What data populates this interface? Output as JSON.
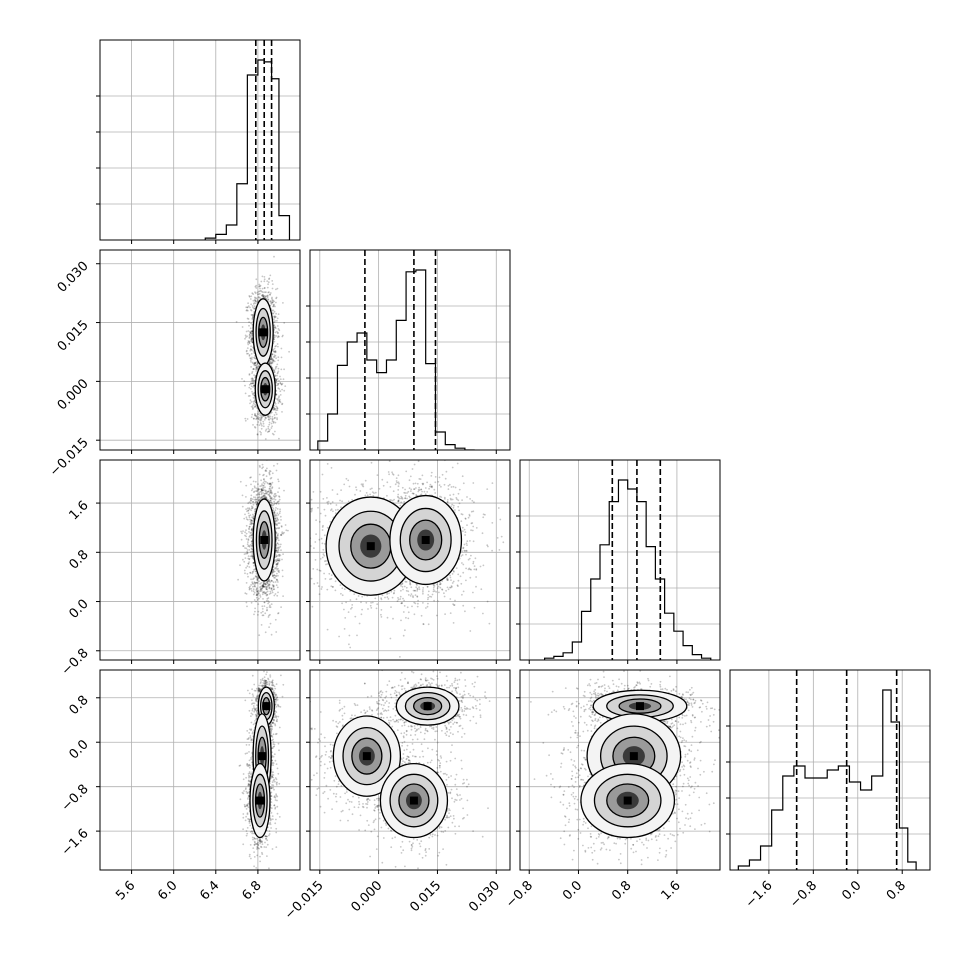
{
  "chart_data": {
    "type": "corner",
    "colors": {
      "ink": "#000000",
      "grid": "#b0b0b0",
      "background": "#ffffff"
    },
    "parameters": [
      {
        "range": [
          5.3,
          7.2
        ],
        "ticks": [
          5.6,
          6.0,
          6.4,
          6.8
        ],
        "tick_labels": [
          "5.6",
          "6.0",
          "6.4",
          "6.8"
        ],
        "quantiles": [
          6.78,
          6.86,
          6.93
        ],
        "hist": {
          "edges": [
            6.3,
            6.4,
            6.5,
            6.6,
            6.7,
            6.8,
            6.86,
            6.93,
            7.0,
            7.1
          ],
          "counts": [
            0.01,
            0.03,
            0.08,
            0.3,
            0.88,
            0.96,
            0.95,
            0.86,
            0.13
          ]
        }
      },
      {
        "range": [
          -0.0175,
          0.0335
        ],
        "ticks": [
          -0.015,
          0.0,
          0.015,
          0.03
        ],
        "tick_labels": [
          "−0.015",
          "0.000",
          "0.015",
          "0.030"
        ],
        "quantiles": [
          -0.0035,
          0.009,
          0.0145
        ],
        "hist": {
          "edges": [
            -0.0155,
            -0.013,
            -0.0105,
            -0.008,
            -0.0055,
            -0.003,
            -0.0005,
            0.002,
            0.0045,
            0.007,
            0.0095,
            0.012,
            0.0145,
            0.017,
            0.0195,
            0.022,
            0.0245
          ],
          "counts": [
            0.05,
            0.2,
            0.47,
            0.6,
            0.65,
            0.5,
            0.43,
            0.5,
            0.72,
            0.99,
            1.0,
            0.48,
            0.1,
            0.03,
            0.01,
            0.0
          ]
        }
      },
      {
        "range": [
          -0.95,
          2.3
        ],
        "ticks": [
          -0.8,
          0.0,
          0.8,
          1.6
        ],
        "tick_labels": [
          "−0.8",
          "0.0",
          "0.8",
          "1.6"
        ],
        "quantiles": [
          0.55,
          0.95,
          1.33
        ],
        "hist": {
          "edges": [
            -0.55,
            -0.4,
            -0.25,
            -0.1,
            0.05,
            0.2,
            0.35,
            0.5,
            0.65,
            0.8,
            0.95,
            1.1,
            1.25,
            1.4,
            1.55,
            1.7,
            1.85,
            2.0,
            2.15
          ],
          "counts": [
            0.01,
            0.02,
            0.04,
            0.1,
            0.27,
            0.45,
            0.64,
            0.88,
            1.0,
            0.95,
            0.88,
            0.63,
            0.45,
            0.26,
            0.16,
            0.08,
            0.03,
            0.01
          ]
        }
      },
      {
        "range": [
          -2.3,
          1.3
        ],
        "ticks": [
          -1.6,
          -0.8,
          0.0,
          0.8
        ],
        "tick_labels": [
          "−1.6",
          "−0.8",
          "0.0",
          "0.8"
        ],
        "quantiles": [
          -1.1,
          -0.2,
          0.7
        ],
        "hist": {
          "edges": [
            -2.15,
            -1.95,
            -1.75,
            -1.55,
            -1.35,
            -1.15,
            -0.95,
            -0.75,
            -0.55,
            -0.35,
            -0.15,
            0.05,
            0.25,
            0.45,
            0.6,
            0.75,
            0.9,
            1.05
          ],
          "counts": [
            0.02,
            0.05,
            0.12,
            0.3,
            0.47,
            0.52,
            0.46,
            0.46,
            0.5,
            0.52,
            0.44,
            0.4,
            0.47,
            0.9,
            0.74,
            0.21,
            0.04
          ]
        }
      }
    ],
    "density_blobs": {
      "1_0": [
        {
          "x": 6.85,
          "y": 0.0125,
          "sx": 0.05,
          "sy": 0.0045,
          "w": 0.55
        },
        {
          "x": 6.87,
          "y": -0.002,
          "sx": 0.05,
          "sy": 0.0035,
          "w": 0.45
        }
      ],
      "2_0": [
        {
          "x": 6.86,
          "y": 1.0,
          "sx": 0.055,
          "sy": 0.35,
          "w": 1.0
        }
      ],
      "2_1": [
        {
          "x": -0.002,
          "y": 0.9,
          "sx": 0.006,
          "sy": 0.42,
          "w": 0.4
        },
        {
          "x": 0.012,
          "y": 1.0,
          "sx": 0.0048,
          "sy": 0.38,
          "w": 0.6
        }
      ],
      "3_0": [
        {
          "x": 6.88,
          "y": 0.65,
          "sx": 0.04,
          "sy": 0.18,
          "w": 0.35
        },
        {
          "x": 6.84,
          "y": -0.25,
          "sx": 0.045,
          "sy": 0.4,
          "w": 0.3
        },
        {
          "x": 6.82,
          "y": -1.05,
          "sx": 0.05,
          "sy": 0.35,
          "w": 0.35
        }
      ],
      "3_1": [
        {
          "x": 0.0125,
          "y": 0.65,
          "sx": 0.0042,
          "sy": 0.18,
          "w": 0.35
        },
        {
          "x": -0.003,
          "y": -0.25,
          "sx": 0.0045,
          "sy": 0.38,
          "w": 0.3
        },
        {
          "x": 0.009,
          "y": -1.05,
          "sx": 0.0045,
          "sy": 0.35,
          "w": 0.35
        }
      ],
      "3_2": [
        {
          "x": 1.0,
          "y": 0.65,
          "sx": 0.4,
          "sy": 0.15,
          "w": 0.35
        },
        {
          "x": 0.9,
          "y": -0.25,
          "sx": 0.4,
          "sy": 0.4,
          "w": 0.3
        },
        {
          "x": 0.8,
          "y": -1.05,
          "sx": 0.4,
          "sy": 0.35,
          "w": 0.35
        }
      ]
    }
  }
}
